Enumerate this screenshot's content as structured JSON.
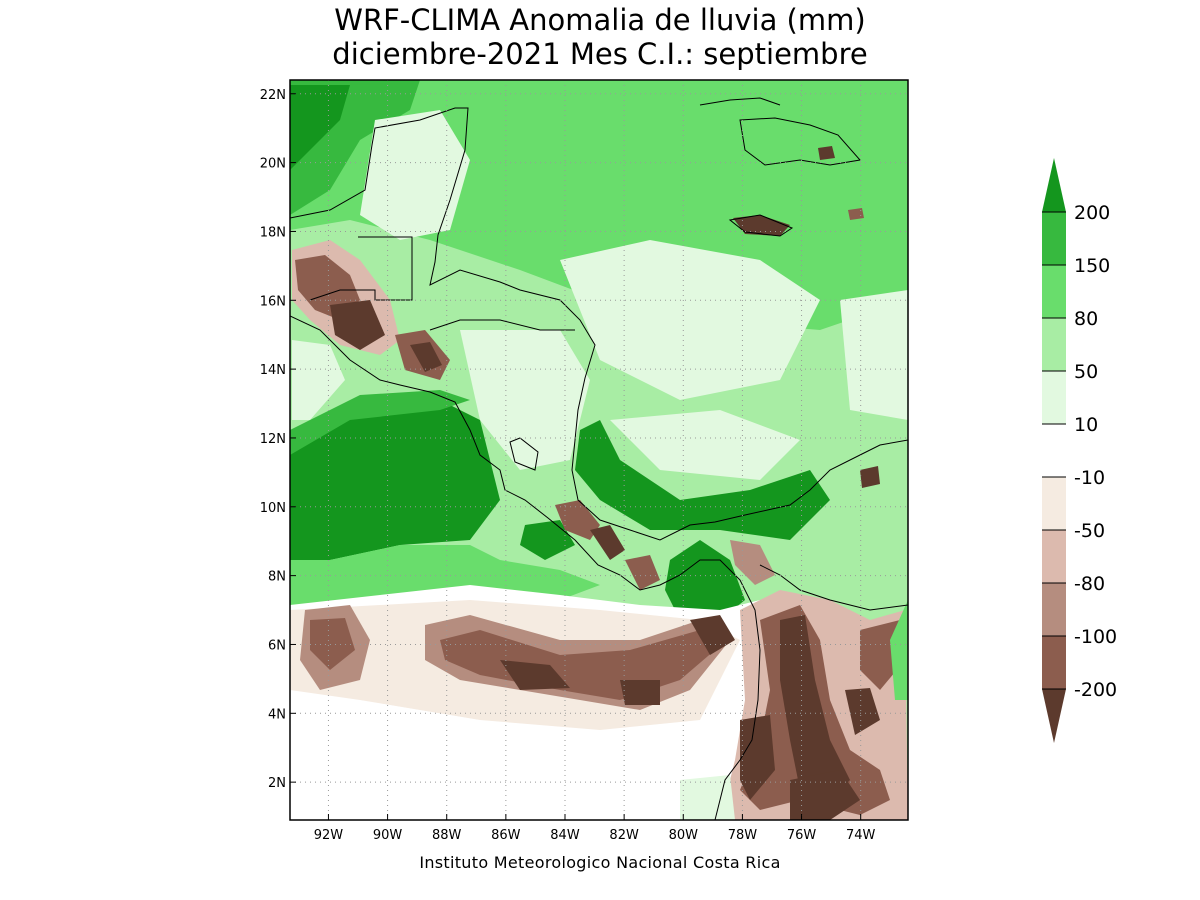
{
  "title": {
    "line1": "WRF-CLIMA Anomalia de lluvia (mm)",
    "line2": "diciembre-2021 Mes C.I.: septiembre"
  },
  "map": {
    "lon_range": [
      -93.3,
      -72.4
    ],
    "lat_range": [
      0.9,
      22.4
    ],
    "lon_ticks": [
      "92W",
      "90W",
      "88W",
      "86W",
      "84W",
      "82W",
      "80W",
      "78W",
      "76W",
      "74W"
    ],
    "lat_ticks": [
      "2N",
      "4N",
      "6N",
      "8N",
      "10N",
      "12N",
      "14N",
      "16N",
      "18N",
      "20N",
      "22N"
    ],
    "grid": true
  },
  "colorbar": {
    "labels": [
      "200",
      "150",
      "80",
      "50",
      "10",
      "-10",
      "-50",
      "-80",
      "-100",
      "-200"
    ],
    "colors": {
      "gt200": "#14961e",
      "b150_200": "#37b93f",
      "b80_150": "#69dd6c",
      "b50_80": "#a8eda4",
      "b10_50": "#e2f9e0",
      "b_neg10_10": "#ffffff",
      "b_neg50_neg10": "#f5ebe1",
      "b_neg80_neg50": "#dcbaae",
      "b_neg100_neg80": "#b58d7f",
      "b_neg200_neg100": "#8c5d4e",
      "lt_neg200": "#5c3a2d"
    }
  },
  "footer": "Instituto Meteorologico Nacional Costa Rica"
}
